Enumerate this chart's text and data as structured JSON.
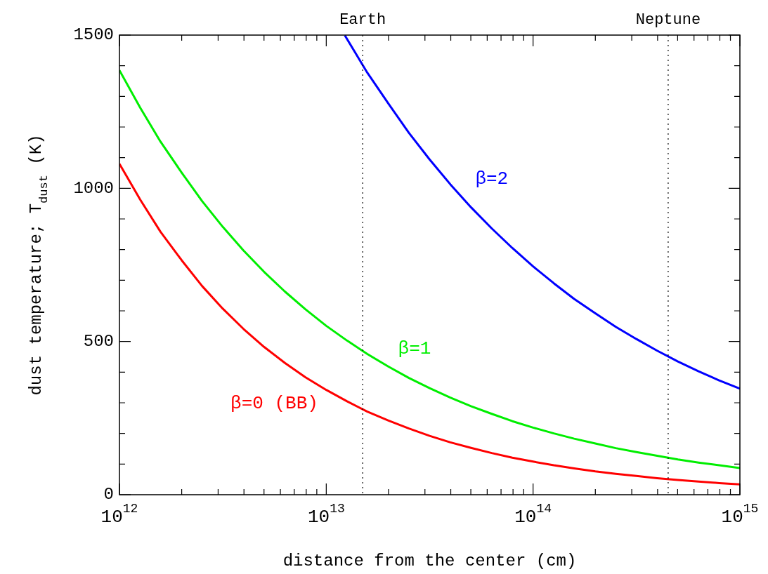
{
  "chart_data": {
    "type": "line",
    "xlabel": "distance from the center (cm)",
    "ylabel": "dust temperature; T$_{dust}$ (K)",
    "log": "x",
    "grid": false,
    "legend": false,
    "marker": "none",
    "line_style": "solid",
    "xlim": [
      1000000000000.0,
      1000000000000000.0
    ],
    "ylim": [
      0,
      1500
    ],
    "xticks": [
      {
        "value": 1000000000000.0,
        "label": "10$^{12}$"
      },
      {
        "value": 2000000000000.0,
        "label": null
      },
      {
        "value": 3000000000000.0,
        "label": null
      },
      {
        "value": 4000000000000.0,
        "label": null
      },
      {
        "value": 5000000000000.0,
        "label": null
      },
      {
        "value": 6000000000000.0,
        "label": null
      },
      {
        "value": 7000000000000.0,
        "label": null
      },
      {
        "value": 8000000000000.0,
        "label": null
      },
      {
        "value": 9000000000000.0,
        "label": null
      },
      {
        "value": 10000000000000.0,
        "label": "10$^{13}$"
      },
      {
        "value": 20000000000000.0,
        "label": null
      },
      {
        "value": 30000000000000.0,
        "label": null
      },
      {
        "value": 40000000000000.0,
        "label": null
      },
      {
        "value": 50000000000000.0,
        "label": null
      },
      {
        "value": 60000000000000.0,
        "label": null
      },
      {
        "value": 70000000000000.0,
        "label": null
      },
      {
        "value": 80000000000000.0,
        "label": null
      },
      {
        "value": 90000000000000.0,
        "label": null
      },
      {
        "value": 100000000000000.0,
        "label": "10$^{14}$"
      },
      {
        "value": 200000000000000.0,
        "label": null
      },
      {
        "value": 300000000000000.0,
        "label": null
      },
      {
        "value": 400000000000000.0,
        "label": null
      },
      {
        "value": 500000000000000.0,
        "label": null
      },
      {
        "value": 600000000000000.0,
        "label": null
      },
      {
        "value": 700000000000000.0,
        "label": null
      },
      {
        "value": 800000000000000.0,
        "label": null
      },
      {
        "value": 900000000000000.0,
        "label": null
      },
      {
        "value": 1000000000000000.0,
        "label": "10$^{15}$"
      }
    ],
    "yticks": [
      0,
      {
        "value": 100,
        "label": null
      },
      {
        "value": 200,
        "label": null
      },
      {
        "value": 300,
        "label": null
      },
      {
        "value": 400,
        "label": null
      },
      500,
      {
        "value": 600,
        "label": null
      },
      {
        "value": 700,
        "label": null
      },
      {
        "value": 800,
        "label": null
      },
      {
        "value": 900,
        "label": null
      },
      1000,
      {
        "value": 1100,
        "label": null
      },
      {
        "value": 1200,
        "label": null
      },
      {
        "value": 1300,
        "label": null
      },
      {
        "value": 1400,
        "label": null
      },
      1500
    ],
    "ref_lines": [
      {
        "axis": "x",
        "value": 15000000000000.0,
        "label": "Earth",
        "line_style": "dotted",
        "color": "#000000"
      },
      {
        "axis": "x",
        "value": 450000000000000.0,
        "label": "Neptune",
        "line_style": "dotted",
        "color": "#000000"
      }
    ],
    "series": [
      {
        "name": "β=0 (BB)",
        "color": "#ff0000",
        "x": [
          1000000000000.0,
          1260000000000.0,
          1580000000000.0,
          2000000000000.0,
          2510000000000.0,
          3160000000000.0,
          3980000000000.0,
          5010000000000.0,
          6310000000000.0,
          7940000000000.0,
          10000000000000.0,
          12600000000000.0,
          15800000000000.0,
          20000000000000.0,
          25100000000000.0,
          31600000000000.0,
          39800000000000.0,
          50100000000000.0,
          63100000000000.0,
          79400000000000.0,
          100000000000000.0,
          126000000000000.0,
          158000000000000.0,
          200000000000000.0,
          251000000000000.0,
          316000000000000.0,
          398000000000000.0,
          501000000000000.0,
          631000000000000.0,
          794000000000000.0,
          1000000000000000.0
        ],
        "values": [
          1080,
          963,
          858,
          765,
          681,
          607,
          541,
          482,
          430,
          383,
          342,
          305,
          271,
          242,
          216,
          192,
          171,
          153,
          136,
          121,
          108,
          96,
          86,
          76,
          68,
          61,
          54,
          48,
          43,
          38,
          34
        ]
      },
      {
        "name": "β=1",
        "color": "#00ee00",
        "x": [
          1000000000000.0,
          1260000000000.0,
          1580000000000.0,
          2000000000000.0,
          2510000000000.0,
          3160000000000.0,
          3980000000000.0,
          5010000000000.0,
          6310000000000.0,
          7940000000000.0,
          10000000000000.0,
          12600000000000.0,
          15800000000000.0,
          20000000000000.0,
          25100000000000.0,
          31600000000000.0,
          39800000000000.0,
          50100000000000.0,
          63100000000000.0,
          79400000000000.0,
          100000000000000.0,
          126000000000000.0,
          158000000000000.0,
          200000000000000.0,
          251000000000000.0,
          316000000000000.0,
          398000000000000.0,
          501000000000000.0,
          631000000000000.0,
          794000000000000.0,
          1000000000000000.0
        ],
        "values": [
          1385,
          1263,
          1152,
          1051,
          958,
          874,
          797,
          727,
          663,
          605,
          551,
          503,
          459,
          418,
          381,
          348,
          317,
          289,
          264,
          240,
          219,
          200,
          183,
          167,
          152,
          139,
          127,
          115,
          105,
          96,
          87
        ]
      },
      {
        "name": "β=2",
        "color": "#0000ff",
        "x": [
          12300000000000.0,
          15800000000000.0,
          20000000000000.0,
          25100000000000.0,
          31600000000000.0,
          39800000000000.0,
          50100000000000.0,
          63100000000000.0,
          79400000000000.0,
          100000000000000.0,
          126000000000000.0,
          158000000000000.0,
          200000000000000.0,
          251000000000000.0,
          316000000000000.0,
          398000000000000.0,
          501000000000000.0,
          631000000000000.0,
          794000000000000.0,
          1000000000000000.0
        ],
        "values": [
          1499,
          1377,
          1276,
          1181,
          1094,
          1013,
          938,
          869,
          805,
          745,
          690,
          639,
          592,
          548,
          508,
          470,
          435,
          403,
          373,
          346
        ]
      }
    ]
  }
}
